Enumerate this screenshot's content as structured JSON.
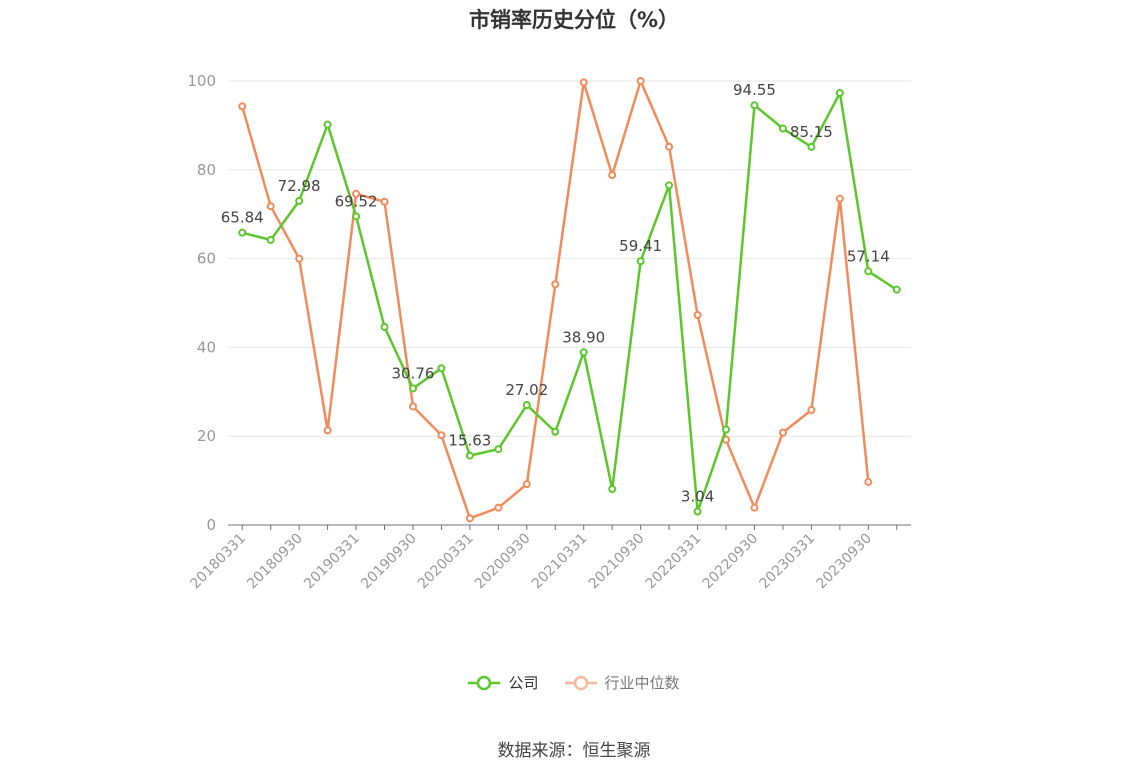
{
  "chart_data": {
    "type": "line",
    "title": "市销率历史分位（%）",
    "x": [
      "20180331",
      "20180630",
      "20180930",
      "20181231",
      "20190331",
      "20190630",
      "20190930",
      "20191231",
      "20200331",
      "20200630",
      "20200930",
      "20201231",
      "20210331",
      "20210630",
      "20210930",
      "20211231",
      "20220331",
      "20220630",
      "20220930",
      "20221231",
      "20230331",
      "20230630",
      "20230930",
      "20231231"
    ],
    "x_tick_labels": [
      "20180331",
      "20180930",
      "20190331",
      "20190930",
      "20200331",
      "20200930",
      "20210331",
      "20210930",
      "20220331",
      "20220930",
      "20230331",
      "20230930"
    ],
    "ylim": [
      0,
      100
    ],
    "yticks": [
      0,
      20,
      40,
      60,
      80,
      100
    ],
    "grid": true,
    "legend_position": "bottom",
    "series": [
      {
        "name": "公司",
        "color": "#5cc72a",
        "values": [
          65.84,
          64.2,
          72.98,
          90.2,
          69.52,
          44.6,
          30.76,
          35.3,
          15.63,
          17.1,
          27.02,
          21.0,
          38.9,
          8.1,
          59.41,
          76.5,
          3.04,
          21.5,
          94.55,
          89.3,
          85.15,
          97.3,
          57.14,
          53.0
        ],
        "labels": {
          "0": "65.84",
          "2": "72.98",
          "4": "69.52",
          "6": "30.76",
          "8": "15.63",
          "10": "27.02",
          "12": "38.90",
          "14": "59.41",
          "16": "3.04",
          "18": "94.55",
          "20": "85.15",
          "22": "57.14"
        }
      },
      {
        "name": "行业中位数",
        "color": "#f28b5b",
        "values": [
          94.3,
          71.8,
          60.0,
          21.3,
          74.6,
          72.8,
          26.7,
          20.2,
          1.5,
          3.9,
          9.2,
          54.2,
          99.7,
          78.8,
          100.0,
          85.2,
          47.3,
          19.2,
          3.9,
          20.8,
          25.9,
          73.5,
          9.7,
          null
        ]
      }
    ]
  },
  "legend": [
    {
      "label": "公司",
      "color": "#5cc72a",
      "text_color": "#333333"
    },
    {
      "label": "行业中位数",
      "color": "#f8b79a",
      "text_color": "#777777"
    }
  ],
  "source": "数据来源：恒生聚源"
}
